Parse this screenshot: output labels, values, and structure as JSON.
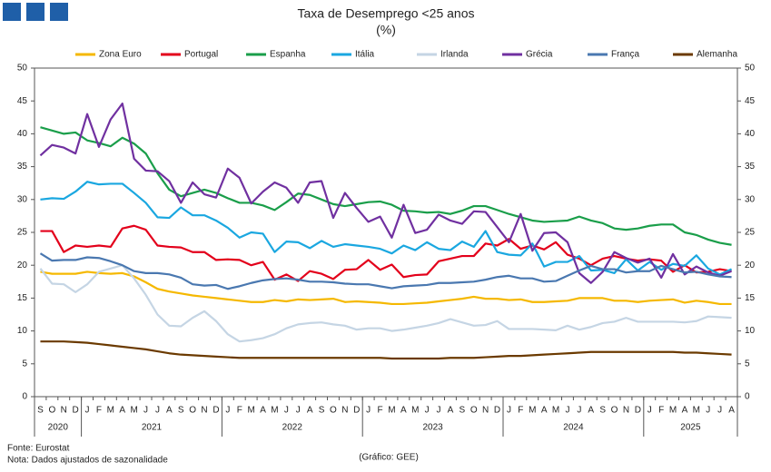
{
  "chart_data": {
    "type": "line",
    "title": "Taxa de Desemprego <25 anos",
    "subtitle": "(%)",
    "categories": [
      "S",
      "O",
      "N",
      "D",
      "J",
      "F",
      "M",
      "A",
      "M",
      "J",
      "J",
      "A",
      "S",
      "O",
      "N",
      "D",
      "J",
      "F",
      "M",
      "A",
      "M",
      "J",
      "J",
      "A",
      "S",
      "O",
      "N",
      "D",
      "J",
      "F",
      "M",
      "A",
      "M",
      "J",
      "J",
      "A",
      "S",
      "O",
      "N",
      "D",
      "J",
      "F",
      "M",
      "A",
      "M",
      "J",
      "J",
      "A",
      "S",
      "O",
      "N",
      "D",
      "J",
      "F",
      "M",
      "A",
      "M",
      "J",
      "J",
      "A"
    ],
    "category_groups": [
      "2020",
      "2020",
      "2020",
      "2020",
      "2021",
      "2021",
      "2021",
      "2021",
      "2021",
      "2021",
      "2021",
      "2021",
      "2021",
      "2021",
      "2021",
      "2021",
      "2022",
      "2022",
      "2022",
      "2022",
      "2022",
      "2022",
      "2022",
      "2022",
      "2022",
      "2022",
      "2022",
      "2022",
      "2023",
      "2023",
      "2023",
      "2023",
      "2023",
      "2023",
      "2023",
      "2023",
      "2023",
      "2023",
      "2023",
      "2023",
      "2024",
      "2024",
      "2024",
      "2024",
      "2024",
      "2024",
      "2024",
      "2024",
      "2024",
      "2024",
      "2024",
      "2024",
      "2025",
      "2025",
      "2025",
      "2025",
      "2025",
      "2025",
      "2025",
      "2025"
    ],
    "series": [
      {
        "name": "Zona Euro",
        "color": "#f5b800",
        "values": [
          19,
          18.7,
          18.7,
          18.7,
          19,
          18.8,
          18.7,
          18.8,
          18.3,
          17.4,
          16.4,
          16.0,
          15.7,
          15.4,
          15.2,
          15.0,
          14.8,
          14.6,
          14.4,
          14.4,
          14.7,
          14.5,
          14.8,
          14.7,
          14.8,
          14.9,
          14.4,
          14.5,
          14.4,
          14.3,
          14.1,
          14.1,
          14.2,
          14.3,
          14.5,
          14.7,
          14.9,
          15.2,
          14.9,
          14.9,
          14.7,
          14.8,
          14.4,
          14.4,
          14.5,
          14.6,
          15.0,
          15.0,
          15.0,
          14.6,
          14.6,
          14.4,
          14.6,
          14.7,
          14.8,
          14.3,
          14.6,
          14.4,
          14.1,
          14.1
        ]
      },
      {
        "name": "Portugal",
        "color": "#e3001b",
        "values": [
          25.2,
          25.2,
          22,
          23,
          22.8,
          23,
          22.8,
          25.6,
          26,
          25.4,
          23,
          22.8,
          22.7,
          22,
          22,
          20.8,
          20.9,
          20.8,
          20,
          20.5,
          17.8,
          18.6,
          17.6,
          19.1,
          18.7,
          17.9,
          19.3,
          19.4,
          20.8,
          19.3,
          20.1,
          18.2,
          18.5,
          18.6,
          20.6,
          21,
          21.4,
          21.4,
          23.3,
          23,
          24,
          22.5,
          23,
          22.4,
          23.5,
          21.6,
          21,
          20,
          21,
          21.4,
          21,
          20.7,
          20.9,
          20.7,
          19,
          20,
          18.9,
          19,
          19.4,
          19.1
        ]
      },
      {
        "name": "Espanha",
        "color": "#1a9e4a",
        "values": [
          41,
          40.5,
          40,
          40.2,
          39,
          38.6,
          38.1,
          39.4,
          38.5,
          37,
          34,
          31.5,
          30.5,
          31,
          31.5,
          31,
          30.2,
          29.5,
          29.5,
          29.1,
          28.4,
          29.6,
          30.9,
          30.7,
          30,
          29.3,
          29,
          29.3,
          29.6,
          29.7,
          29.2,
          28.3,
          28.2,
          28,
          28.1,
          27.8,
          28.3,
          29,
          29,
          28.4,
          27.8,
          27.3,
          26.8,
          26.6,
          26.7,
          26.8,
          27.4,
          26.8,
          26.4,
          25.6,
          25.4,
          25.6,
          26,
          26.2,
          26.2,
          25,
          24.6,
          23.9,
          23.4,
          23.1
        ]
      },
      {
        "name": "Itália",
        "color": "#1aa7e0",
        "values": [
          30,
          30.2,
          30.1,
          31.2,
          32.7,
          32.3,
          32.4,
          32.4,
          31,
          29.5,
          27.3,
          27.2,
          28.8,
          27.6,
          27.6,
          26.8,
          25.7,
          24.2,
          25,
          24.8,
          22,
          23.6,
          23.5,
          22.6,
          23.7,
          22.8,
          23.2,
          23,
          22.8,
          22.5,
          21.8,
          23,
          22.3,
          23.5,
          22.5,
          22.3,
          23.6,
          22.8,
          25.2,
          22,
          21.6,
          21.5,
          23.3,
          19.8,
          20.5,
          20.5,
          21.4,
          19.2,
          19.3,
          18.8,
          20.9,
          19.2,
          20.5,
          19.3,
          20.2,
          19.9,
          21.5,
          19.5,
          18.6,
          19.4
        ]
      },
      {
        "name": "Irlanda",
        "color": "#c5d5e4",
        "values": [
          19.5,
          17.2,
          17.1,
          15.9,
          17.1,
          19,
          19.5,
          20,
          18,
          15.5,
          12.5,
          10.8,
          10.7,
          12,
          13,
          11.5,
          9.5,
          8.4,
          8.6,
          8.9,
          9.5,
          10.4,
          11,
          11.2,
          11.3,
          11,
          10.8,
          10.2,
          10.4,
          10.4,
          10.0,
          10.2,
          10.5,
          10.8,
          11.2,
          11.8,
          11.3,
          10.8,
          10.9,
          11.5,
          10.3,
          10.3,
          10.3,
          10.2,
          10.1,
          10.8,
          10.2,
          10.6,
          11.2,
          11.4,
          12,
          11.4,
          11.4,
          11.4,
          11.4,
          11.3,
          11.5,
          12.2,
          12.1,
          12.0
        ]
      },
      {
        "name": "Grécia",
        "color": "#7030a0",
        "values": [
          36.7,
          38.3,
          37.9,
          37,
          43,
          38,
          42.2,
          44.6,
          36.2,
          34.4,
          34.3,
          32.8,
          29.5,
          32.6,
          30.8,
          30.3,
          34.7,
          33.3,
          29.4,
          31.2,
          32.6,
          31.8,
          29.5,
          32.6,
          32.8,
          27.2,
          31,
          28.7,
          26.6,
          27.4,
          24.2,
          29.2,
          24.9,
          25.4,
          27.7,
          26.8,
          26.3,
          28.2,
          28.1,
          25.8,
          23.5,
          27.8,
          22.2,
          24.9,
          25,
          23.5,
          18.8,
          17.3,
          19,
          22,
          21.1,
          20.4,
          21,
          18.1,
          21.7,
          18.6,
          19.8,
          18.9,
          18.4,
          19.1
        ]
      },
      {
        "name": "França",
        "color": "#4a78b0",
        "values": [
          21.8,
          20.7,
          20.8,
          20.8,
          21.2,
          21.1,
          20.6,
          20.0,
          19.1,
          18.8,
          18.8,
          18.6,
          18.1,
          17.1,
          16.9,
          17.0,
          16.4,
          16.8,
          17.3,
          17.7,
          17.9,
          18,
          17.8,
          17.5,
          17.5,
          17.4,
          17.2,
          17.1,
          17.1,
          16.8,
          16.5,
          16.8,
          16.9,
          17,
          17.3,
          17.3,
          17.4,
          17.5,
          17.8,
          18.2,
          18.4,
          18,
          18,
          17.5,
          17.6,
          18.4,
          19.2,
          19.9,
          19.4,
          19.4,
          18.9,
          19.1,
          19.1,
          19.9,
          19.4,
          18.9,
          19,
          18.6,
          18.3,
          18.2
        ]
      },
      {
        "name": "Alemanha",
        "color": "#6b3a00",
        "values": [
          8.4,
          8.4,
          8.4,
          8.3,
          8.2,
          8.0,
          7.8,
          7.6,
          7.4,
          7.2,
          6.9,
          6.6,
          6.4,
          6.3,
          6.2,
          6.1,
          6.0,
          5.9,
          5.9,
          5.9,
          5.9,
          5.9,
          5.9,
          5.9,
          5.9,
          5.9,
          5.9,
          5.9,
          5.9,
          5.9,
          5.8,
          5.8,
          5.8,
          5.8,
          5.8,
          5.9,
          5.9,
          5.9,
          6.0,
          6.1,
          6.2,
          6.2,
          6.3,
          6.4,
          6.5,
          6.6,
          6.7,
          6.8,
          6.8,
          6.8,
          6.8,
          6.8,
          6.8,
          6.8,
          6.8,
          6.7,
          6.7,
          6.6,
          6.5,
          6.4
        ]
      }
    ],
    "ylim": [
      0,
      50
    ],
    "yticks": [
      0,
      5,
      10,
      15,
      20,
      25,
      30,
      35,
      40,
      45,
      50
    ],
    "y2lim": [
      0,
      50
    ],
    "y2ticks": [
      0,
      5,
      10,
      15,
      20,
      25,
      30,
      35,
      40,
      45,
      50
    ],
    "grid": false,
    "legend": "top",
    "source": "Fonte: Eurostat",
    "note": "Nota: Dados ajustados de sazonalidade",
    "credit": "(Gráfico: GEE)"
  }
}
